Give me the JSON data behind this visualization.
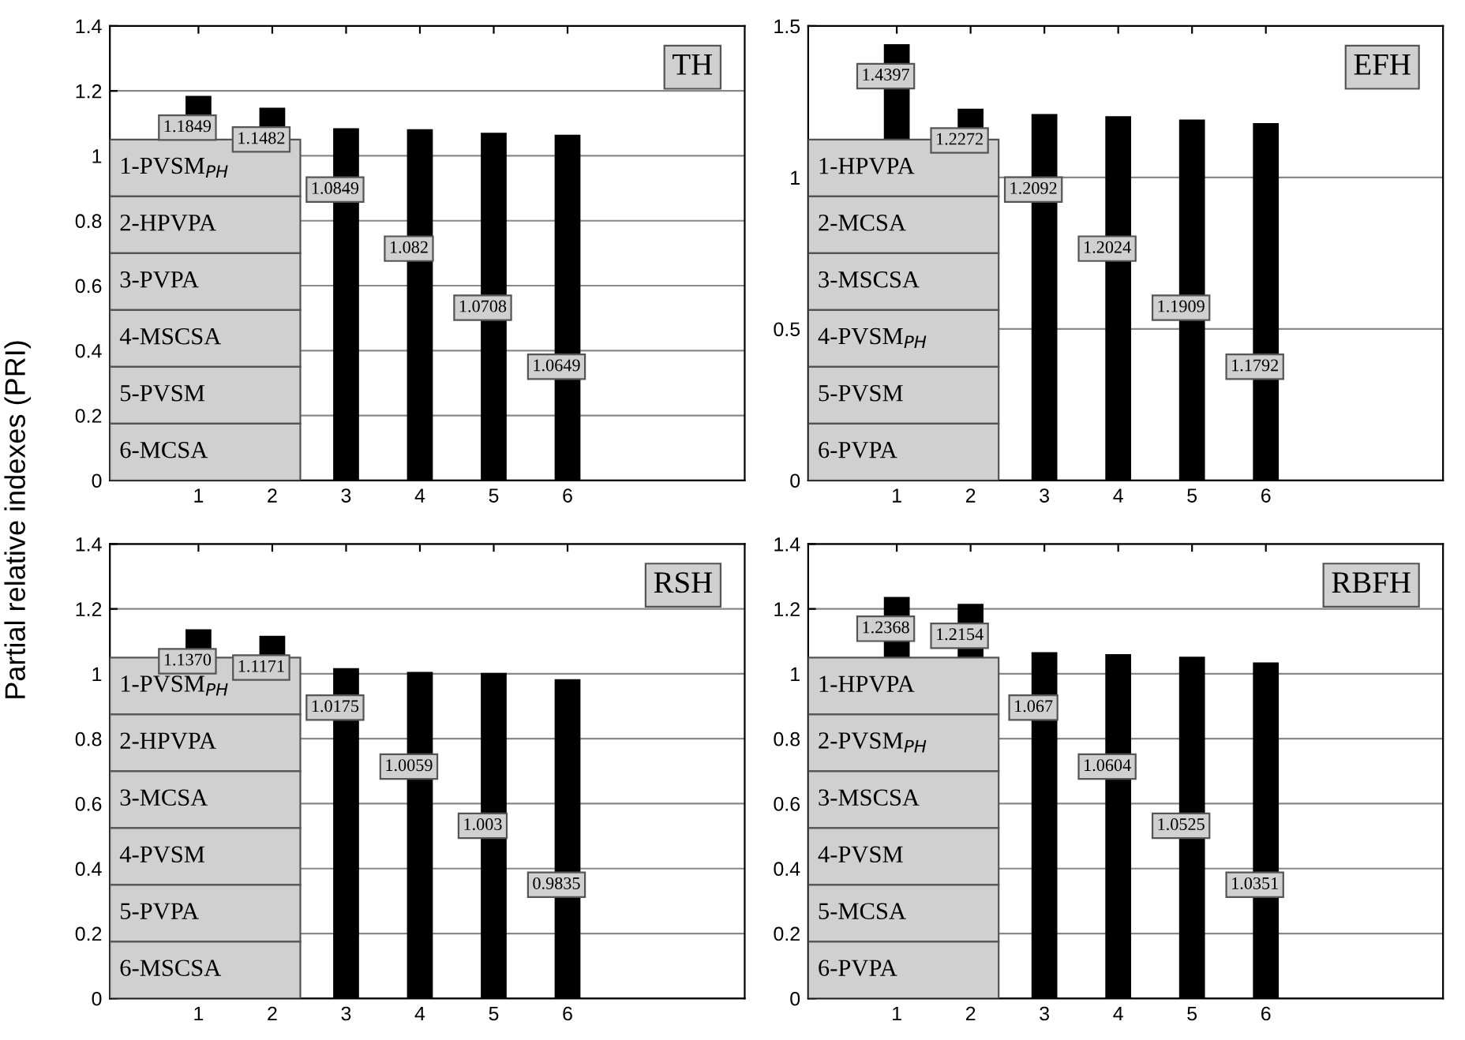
{
  "chart_data": [
    {
      "type": "bar",
      "ylabel": "Partial relative indexes (PRI)",
      "categories": [
        "1",
        "2",
        "3",
        "4",
        "5",
        "6"
      ],
      "values": [
        1.1849,
        1.1482,
        1.0849,
        1.082,
        1.0708,
        1.0649
      ],
      "value_labels": [
        "1.1849",
        "1.1482",
        "1.0849",
        "1.082",
        "1.0708",
        "1.0649"
      ],
      "color": "#000000",
      "ylim": [
        0,
        1.4
      ],
      "yticks": [
        0,
        0.2,
        0.4,
        0.6,
        0.8,
        1,
        1.2,
        1.4
      ],
      "grid": "y",
      "annotations": [
        "TH",
        "1-PVSM$_{PH}$",
        "2-HPVPA",
        "3-PVPA",
        "4-MSCSA",
        "5-PVSM",
        "6-MCSA"
      ]
    },
    {
      "type": "bar",
      "categories": [
        "1",
        "2",
        "3",
        "4",
        "5",
        "6"
      ],
      "values": [
        1.4397,
        1.2272,
        1.2092,
        1.2024,
        1.1909,
        1.1792
      ],
      "value_labels": [
        "1.4397",
        "1.2272",
        "1.2092",
        "1.2024",
        "1.1909",
        "1.1792"
      ],
      "color": "#000000",
      "ylim": [
        0,
        1.5
      ],
      "yticks": [
        0,
        0.5,
        1,
        1.5
      ],
      "grid": "y",
      "annotations": [
        "EFH",
        "1-HPVPA",
        "2-MCSA",
        "3-MSCSA",
        "4-PVSM$_{PH}$",
        "5-PVSM",
        "6-PVPA"
      ]
    },
    {
      "type": "bar",
      "categories": [
        "1",
        "2",
        "3",
        "4",
        "5",
        "6"
      ],
      "values": [
        1.137,
        1.1171,
        1.0175,
        1.0059,
        1.003,
        0.9835
      ],
      "value_labels": [
        "1.1370",
        "1.1171",
        "1.0175",
        "1.0059",
        "1.003",
        "0.9835"
      ],
      "color": "#000000",
      "ylim": [
        0,
        1.4
      ],
      "yticks": [
        0,
        0.2,
        0.4,
        0.6,
        0.8,
        1,
        1.2,
        1.4
      ],
      "grid": "y",
      "annotations": [
        "RSH",
        "1-PVSM$_{PH}$",
        "2-HPVPA",
        "3-MCSA",
        "4-PVSM",
        "5-PVPA",
        "6-MSCSA"
      ]
    },
    {
      "type": "bar",
      "categories": [
        "1",
        "2",
        "3",
        "4",
        "5",
        "6"
      ],
      "values": [
        1.2368,
        1.2154,
        1.067,
        1.0604,
        1.0525,
        1.0351
      ],
      "value_labels": [
        "1.2368",
        "1.2154",
        "1.067",
        "1.0604",
        "1.0525",
        "1.0351"
      ],
      "color": "#000000",
      "ylim": [
        0,
        1.4
      ],
      "yticks": [
        0,
        0.2,
        0.4,
        0.6,
        0.8,
        1,
        1.2,
        1.4
      ],
      "grid": "y",
      "annotations": [
        "RBFH",
        "1-HPVPA",
        "2-PVSM$_{PH}$",
        "3-MSCSA",
        "4-PVSM",
        "5-MCSA",
        "6-PVPA"
      ]
    }
  ]
}
